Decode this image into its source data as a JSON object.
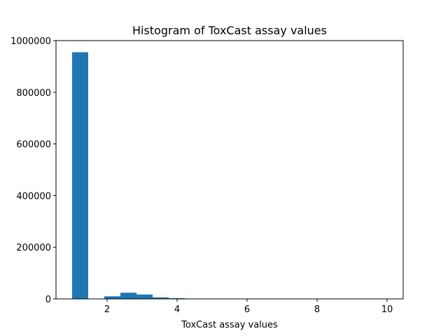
{
  "chart_data": {
    "type": "bar",
    "title": "Histogram of ToxCast assay values",
    "xlabel": "ToxCast assay values",
    "ylabel": "",
    "xlim": [
      0.54,
      10.46
    ],
    "ylim": [
      0,
      1000000
    ],
    "xticks": [
      2,
      4,
      6,
      8,
      10
    ],
    "yticks": [
      0,
      200000,
      400000,
      600000,
      800000,
      1000000
    ],
    "bar_color": "#1f77b4",
    "bin_edges": [
      1.0,
      1.46,
      1.92,
      2.38,
      2.84,
      3.3,
      3.76,
      4.22,
      4.68,
      5.14,
      5.6,
      6.06,
      6.52,
      6.98,
      7.44,
      7.9,
      8.36,
      8.82,
      9.28,
      9.74,
      10.2
    ],
    "values": [
      955000,
      0,
      10000,
      24000,
      17000,
      6000,
      3000,
      0,
      0,
      0,
      0,
      0,
      0,
      0,
      0,
      0,
      0,
      0,
      0,
      0
    ],
    "grid": false,
    "legend": "none"
  }
}
